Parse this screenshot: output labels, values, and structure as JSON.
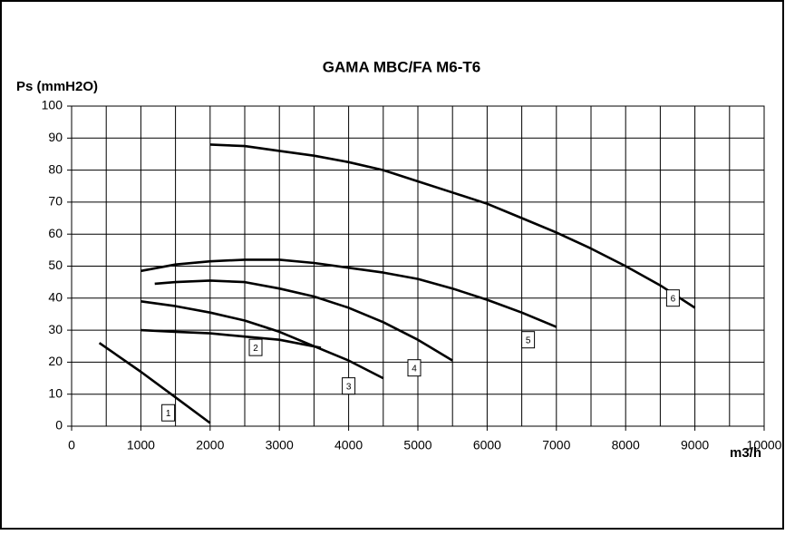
{
  "chart_data": {
    "type": "line",
    "title": "GAMA MBC/FA M6-T6",
    "y_label": "Ps (mmH2O)",
    "x_label": "m3/h",
    "xlim": [
      0,
      10000
    ],
    "ylim": [
      0,
      100
    ],
    "xticks": [
      0,
      1000,
      2000,
      3000,
      4000,
      5000,
      6000,
      7000,
      8000,
      9000,
      10000
    ],
    "x_minor_grid": [
      500,
      1500,
      2500,
      3500,
      4500,
      5500,
      6500,
      7500,
      8500,
      9500
    ],
    "yticks": [
      0,
      10,
      20,
      30,
      40,
      50,
      60,
      70,
      80,
      90,
      100
    ],
    "grid": true,
    "series": [
      {
        "name": "1",
        "color": "#000000",
        "x": [
          400,
          1000,
          1500,
          2000
        ],
        "values": [
          26,
          17,
          9,
          1
        ]
      },
      {
        "name": "2",
        "color": "#000000",
        "x": [
          1000,
          1500,
          2000,
          2500,
          3000,
          3600
        ],
        "values": [
          30,
          29.5,
          29,
          28,
          27,
          24.5
        ]
      },
      {
        "name": "3",
        "color": "#000000",
        "x": [
          1000,
          1500,
          2000,
          2500,
          3000,
          3500,
          4000,
          4500
        ],
        "values": [
          39,
          37.5,
          35.5,
          33,
          29.5,
          25,
          20.5,
          15
        ]
      },
      {
        "name": "4",
        "color": "#000000",
        "x": [
          1200,
          1500,
          2000,
          2500,
          3000,
          3500,
          4000,
          4500,
          5000,
          5500
        ],
        "values": [
          44.5,
          45,
          45.5,
          45,
          43,
          40.5,
          37,
          32.5,
          27,
          20.5
        ]
      },
      {
        "name": "5",
        "color": "#000000",
        "x": [
          1000,
          1500,
          2000,
          2500,
          3000,
          3500,
          4000,
          4500,
          5000,
          5500,
          6000,
          6500,
          7000
        ],
        "values": [
          48.5,
          50.5,
          51.5,
          52,
          52,
          51,
          49.5,
          48,
          46,
          43,
          39.5,
          35.5,
          31
        ]
      },
      {
        "name": "6",
        "color": "#000000",
        "x": [
          2000,
          2500,
          3000,
          3500,
          4000,
          4500,
          5000,
          5500,
          6000,
          6500,
          7000,
          7500,
          8000,
          8500,
          9000
        ],
        "values": [
          88,
          87.5,
          86,
          84.5,
          82.5,
          80,
          76.5,
          73,
          69.5,
          65,
          60.5,
          55.5,
          50,
          44,
          37
        ]
      }
    ]
  }
}
